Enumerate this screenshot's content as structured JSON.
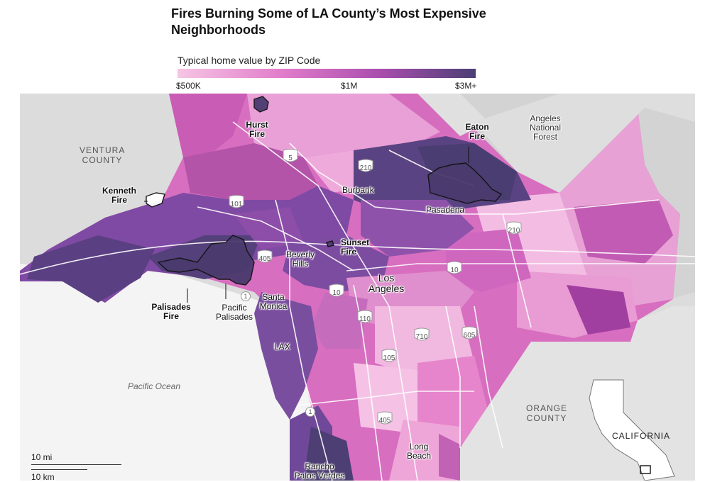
{
  "title": "Fires Burning Some of LA County’s Most Expensive Neighborhoods",
  "legend": {
    "title": "Typical home value by ZIP Code",
    "ticks": [
      "$500K",
      "$1M",
      "$3M+"
    ],
    "colors": [
      "#f6c6e4",
      "#e27ccb",
      "#a94eae",
      "#4c3f74"
    ]
  },
  "fires": {
    "hurst": "Hurst Fire",
    "eaton": "Eaton Fire",
    "kenneth": "Kenneth Fire",
    "sunset": "Sunset Fire",
    "palisades": "Palisades Fire"
  },
  "places": {
    "burbank": "Burbank",
    "pasadena": "Pasadena",
    "beverly_hills": "Beverly Hills",
    "los_angeles": "Los Angeles",
    "santa_monica": "Santa Monica",
    "pacific_palisades": "Pacific Palisades",
    "lax": "LAX",
    "long_beach": "Long Beach",
    "rancho_palos_verdes": "Rancho Palos Verdes"
  },
  "regions": {
    "ventura": "VENTURA COUNTY",
    "orange": "ORANGE COUNTY",
    "angeles_nf": "Angeles National Forest",
    "ocean": "Pacific Ocean",
    "inset": "CALIFORNIA"
  },
  "highways": [
    "5",
    "210",
    "101",
    "405",
    "210",
    "10",
    "10",
    "1",
    "110",
    "710",
    "605",
    "105",
    "1",
    "405"
  ],
  "scale": {
    "miles": "10 mi",
    "km": "10 km"
  }
}
